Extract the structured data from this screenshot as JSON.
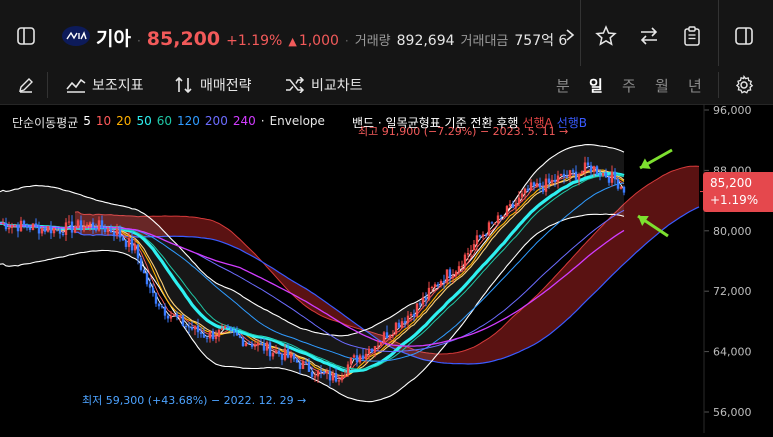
{
  "header": {
    "stock_name": "기아",
    "price": "85,200",
    "change_pct": "+1.19%",
    "change_arrow": "▲",
    "change_abs": "1,000",
    "volume_label": "거래량",
    "volume": "892,694",
    "amount_label": "거래대금",
    "amount": "757억 6",
    "colors": {
      "up": "#f25a5a",
      "text": "#e6e6e6",
      "muted": "#9a9a9a"
    }
  },
  "toolbar": {
    "indicator_label": "보조지표",
    "strategy_label": "매매전략",
    "compare_label": "비교차트",
    "periods": [
      "분",
      "일",
      "주",
      "월",
      "년"
    ],
    "active_period": "일"
  },
  "legend": {
    "ma_label": "단순이동평균",
    "ma_periods": [
      {
        "label": "5",
        "color": "#ffffff"
      },
      {
        "label": "10",
        "color": "#ff5a5a"
      },
      {
        "label": "20",
        "color": "#ffb000"
      },
      {
        "label": "50",
        "color": "#2ef0f0"
      },
      {
        "label": "60",
        "color": "#1fc7a6"
      },
      {
        "label": "120",
        "color": "#2f9bff"
      },
      {
        "label": "200",
        "color": "#6c6cff"
      },
      {
        "label": "240",
        "color": "#d13cff"
      }
    ],
    "envelope_label": "Envelope",
    "overlay_label": "밴드 · 일목균형표 기준 전환 후행",
    "senkou_a": "선행A",
    "senkou_b": "선행B"
  },
  "annotations": {
    "high": "최고 91,900 (−7.29%) − 2023. 5. 11 →",
    "low": "최저 59,300 (+43.68%) − 2022. 12. 29 →"
  },
  "price_tag": {
    "price": "85,200",
    "pct": "+1.19%",
    "color": "#e5484d"
  },
  "chart_data": {
    "type": "candlestick",
    "y_ticks": [
      "96,000",
      "88,000",
      "80,000",
      "72,000",
      "64,000",
      "56,000"
    ],
    "ylim": [
      56000,
      96000
    ],
    "last_price": 85200,
    "high": 91900,
    "low": 59300
  }
}
